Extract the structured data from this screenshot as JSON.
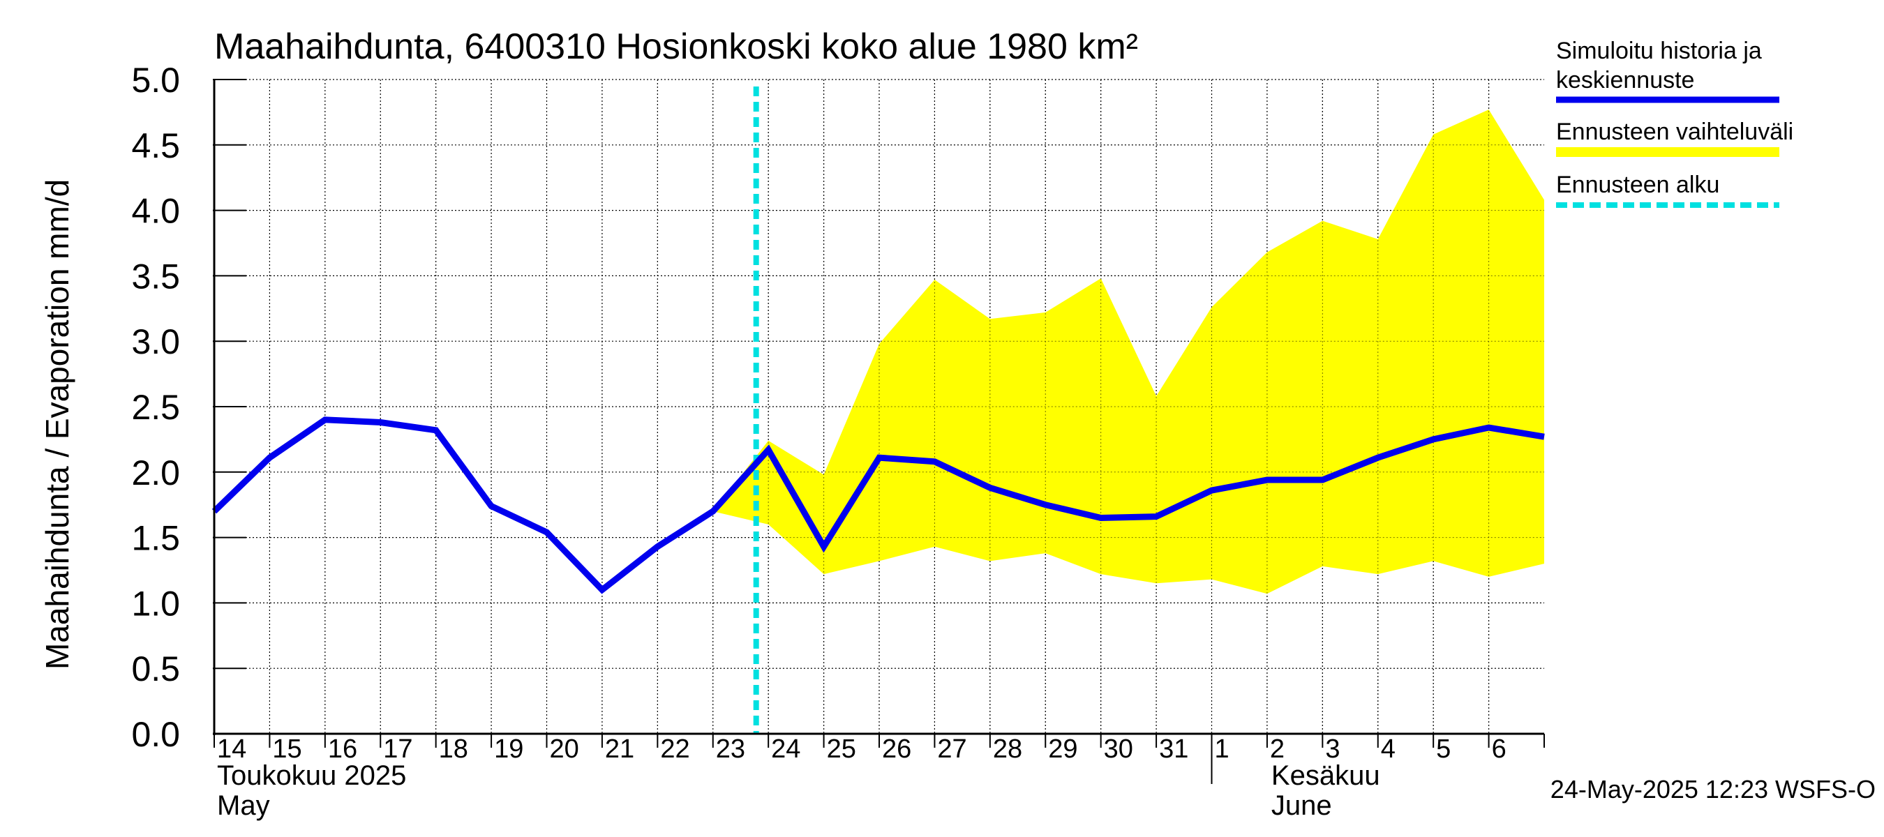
{
  "chart_data": {
    "type": "area",
    "title": "Maahaihdunta, 6400310 Hosionkoski koko alue 1980 km²",
    "ylabel": "Maahaihdunta / Evaporation   mm/d",
    "ylim": [
      0,
      5
    ],
    "yticks": [
      "0.0",
      "0.5",
      "1.0",
      "1.5",
      "2.0",
      "2.5",
      "3.0",
      "3.5",
      "4.0",
      "4.5",
      "5.0"
    ],
    "x_day_labels": [
      "14",
      "15",
      "16",
      "17",
      "18",
      "19",
      "20",
      "21",
      "22",
      "23",
      "24",
      "25",
      "26",
      "27",
      "28",
      "29",
      "30",
      "31",
      "1",
      "2",
      "3",
      "4",
      "5",
      "6"
    ],
    "month_labels": [
      {
        "fi": "Toukokuu  2025",
        "en": "May"
      },
      {
        "fi": "Kesäkuu",
        "en": "June"
      }
    ],
    "grid": true,
    "legend_position": "right",
    "forecast_start_index": 10,
    "series": [
      {
        "name": "Simuloitu historia ja keskiennuste",
        "color": "#0000ee",
        "values": [
          1.7,
          2.11,
          2.4,
          2.38,
          2.32,
          1.74,
          1.54,
          1.1,
          1.43,
          1.7,
          2.17,
          1.43,
          2.11,
          2.08,
          1.88,
          1.75,
          1.65,
          1.66,
          1.86,
          1.94,
          1.94,
          2.11,
          2.25,
          2.34,
          2.27
        ]
      }
    ],
    "band": {
      "name": "Ennusteen vaihteluväli",
      "color": "#ffff00",
      "start_index": 9,
      "upper": [
        1.7,
        2.24,
        1.98,
        2.98,
        3.47,
        3.17,
        3.22,
        3.48,
        2.58,
        3.26,
        3.68,
        3.92,
        3.78,
        4.58,
        4.77,
        4.08
      ],
      "lower": [
        1.7,
        1.6,
        1.22,
        1.32,
        1.43,
        1.32,
        1.38,
        1.22,
        1.15,
        1.18,
        1.07,
        1.28,
        1.22,
        1.32,
        1.2,
        1.3
      ]
    },
    "forecast_line": {
      "name": "Ennusteen alku",
      "color": "#00e0e0"
    },
    "legend": [
      {
        "label": "Simuloitu historia ja keskiennuste",
        "color": "#0000ee",
        "style": "solid"
      },
      {
        "label": "Ennusteen vaihteluväli",
        "color": "#ffff00",
        "style": "solid"
      },
      {
        "label": "Ennusteen alku",
        "color": "#00e0e0",
        "style": "dashed"
      }
    ]
  },
  "footer": {
    "timestamp": "24-May-2025 12:23 WSFS-O"
  }
}
